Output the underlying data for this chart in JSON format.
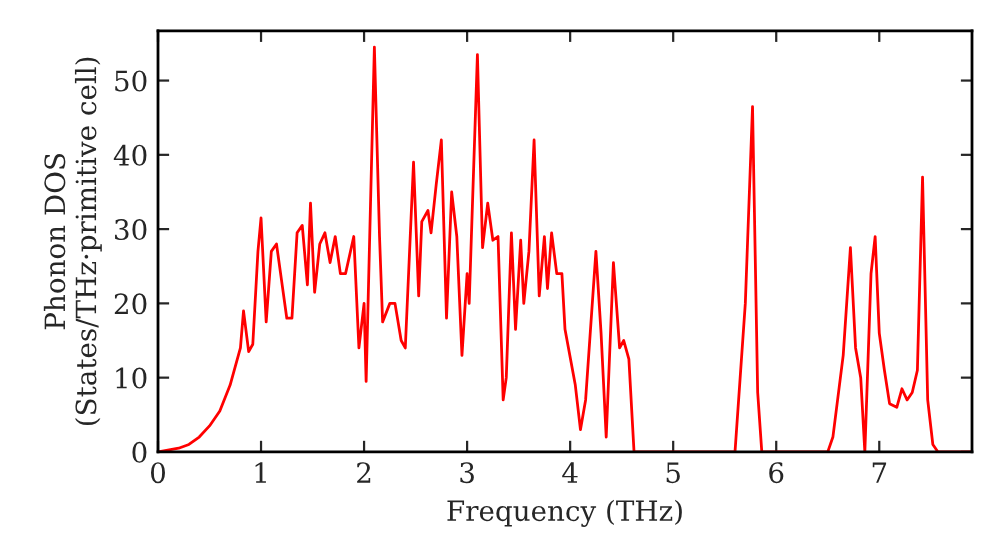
{
  "chart_data": {
    "type": "line",
    "xlabel": "Frequency (THz)",
    "ylabel": "Phonon DOS\n(States/THz·primitive cell)",
    "x": [
      0,
      0.2,
      0.3,
      0.4,
      0.5,
      0.6,
      0.7,
      0.8,
      0.83,
      0.88,
      0.92,
      0.97,
      1.0,
      1.05,
      1.1,
      1.15,
      1.2,
      1.25,
      1.3,
      1.35,
      1.4,
      1.45,
      1.48,
      1.52,
      1.57,
      1.62,
      1.67,
      1.72,
      1.77,
      1.82,
      1.9,
      1.95,
      2.0,
      2.02,
      2.1,
      2.15,
      2.18,
      2.25,
      2.3,
      2.36,
      2.4,
      2.48,
      2.53,
      2.56,
      2.62,
      2.65,
      2.7,
      2.75,
      2.8,
      2.85,
      2.9,
      2.95,
      3.0,
      3.02,
      3.1,
      3.15,
      3.2,
      3.25,
      3.3,
      3.35,
      3.38,
      3.43,
      3.47,
      3.52,
      3.55,
      3.6,
      3.65,
      3.7,
      3.75,
      3.78,
      3.82,
      3.87,
      3.92,
      3.95,
      4.05,
      4.1,
      4.15,
      4.25,
      4.3,
      4.35,
      4.42,
      4.48,
      4.52,
      4.57,
      4.62,
      5.6,
      5.7,
      5.77,
      5.82,
      5.86,
      6.5,
      6.55,
      6.65,
      6.72,
      6.77,
      6.82,
      6.86,
      6.92,
      6.96,
      7.0,
      7.05,
      7.1,
      7.17,
      7.22,
      7.27,
      7.32,
      7.37,
      7.42,
      7.47,
      7.52,
      7.57,
      7.9
    ],
    "series": [
      {
        "color": "#ff0000",
        "values": [
          0,
          0.5,
          1,
          2,
          3.5,
          5.5,
          9,
          14,
          19,
          13.5,
          14.5,
          27,
          31.5,
          17.5,
          27,
          28,
          23,
          18,
          18,
          29.5,
          30.5,
          22.5,
          33.5,
          21.5,
          28,
          29.5,
          25.5,
          29,
          24,
          24,
          29,
          14,
          20,
          9.5,
          54.5,
          29,
          17.5,
          20,
          20,
          15,
          14,
          39,
          21,
          31,
          32.5,
          29.5,
          36,
          42,
          18,
          35,
          29,
          13,
          24,
          20,
          53.5,
          27.5,
          33.5,
          28.5,
          29,
          7,
          10,
          29.5,
          16.5,
          28.5,
          20,
          27,
          42,
          21,
          29,
          22,
          29.5,
          24,
          24,
          16.5,
          9,
          3,
          7,
          27,
          16,
          2,
          25.5,
          14,
          15,
          12.5,
          0,
          0,
          20,
          46.5,
          8,
          0,
          0,
          2,
          13,
          27.5,
          14,
          10,
          0,
          24,
          29,
          16,
          11,
          6.5,
          6,
          8.5,
          7,
          8,
          11,
          37,
          7,
          1,
          0,
          0
        ]
      }
    ],
    "xlim": [
      0,
      7.9
    ],
    "ylim": [
      0,
      56.7
    ],
    "xticks": [
      0,
      1,
      2,
      3,
      4,
      5,
      6,
      7
    ],
    "yticks": [
      0,
      10,
      20,
      30,
      40,
      50
    ],
    "grid": false,
    "line_style": "solid",
    "marker": "none"
  }
}
